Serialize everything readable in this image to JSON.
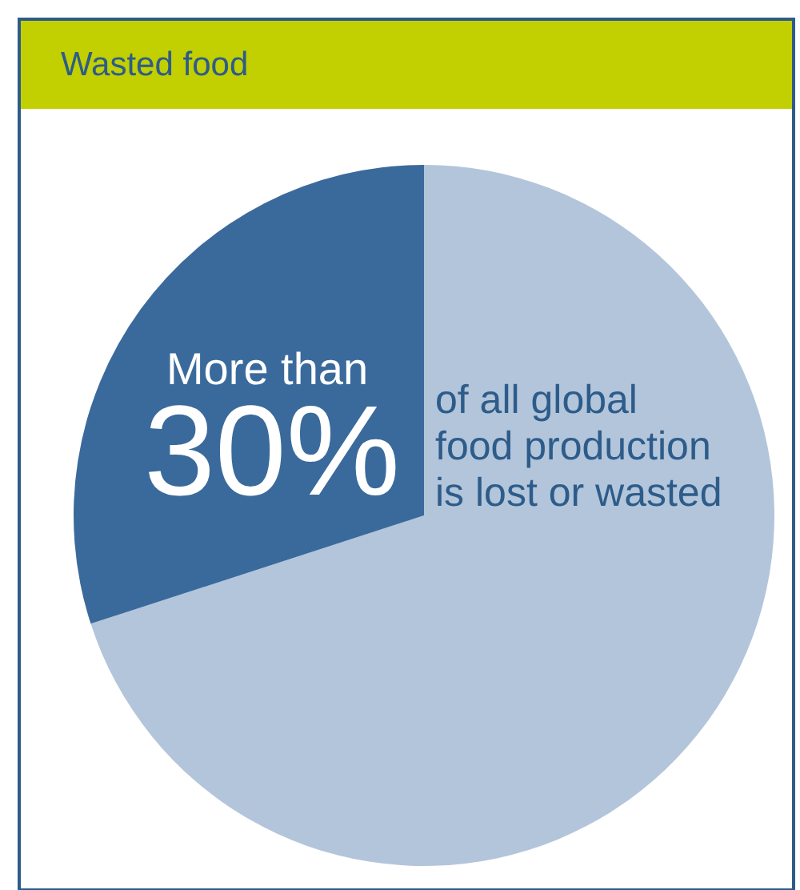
{
  "chart_data": {
    "type": "pie",
    "title": "Wasted food",
    "categories": [
      null,
      null
    ],
    "values": [
      70,
      30
    ],
    "colors": [
      "#b3c5da",
      "#3a6a9b"
    ],
    "value_labels": [
      null,
      "30%"
    ],
    "annotations": [
      "More than",
      "of all global food production is lost or wasted"
    ]
  }
}
